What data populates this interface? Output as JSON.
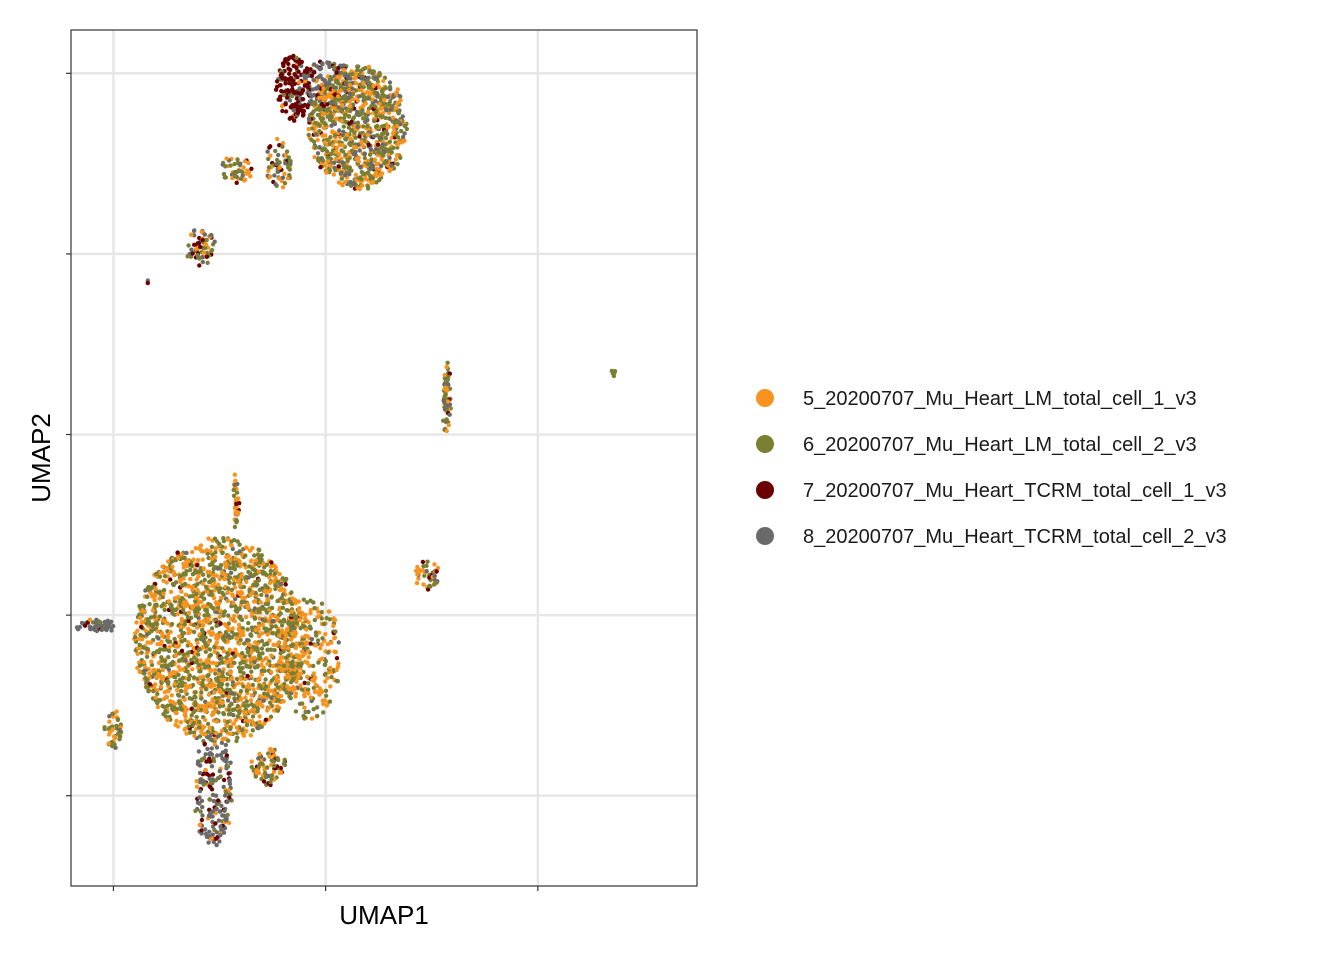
{
  "chart_data": {
    "type": "scatter",
    "xlabel": "UMAP1",
    "ylabel": "UMAP2",
    "xlim": [
      -9.5,
      20
    ],
    "ylim": [
      -12.5,
      11.2
    ],
    "grid": true,
    "tick_labels_shown": false,
    "legend_position": "right",
    "series": [
      {
        "name": "5_20200707_Mu_Heart_LM_total_cell_1_v3",
        "color": "#F7931E"
      },
      {
        "name": "6_20200707_Mu_Heart_LM_total_cell_2_v3",
        "color": "#7A7F33"
      },
      {
        "name": "7_20200707_Mu_Heart_TCRM_total_cell_1_v3",
        "color": "#6B0000"
      },
      {
        "name": "8_20200707_Mu_Heart_TCRM_total_cell_2_v3",
        "color": "#6A6A6A"
      }
    ],
    "clusters": [
      {
        "label": "top-main",
        "cx": 4.0,
        "cy": 8.5,
        "rx": 2.3,
        "ry": 1.7,
        "n": 900,
        "weights": [
          0.35,
          0.45,
          0.04,
          0.16
        ]
      },
      {
        "label": "top-left-subcluster",
        "cx": 1.0,
        "cy": 9.6,
        "rx": 0.8,
        "ry": 0.9,
        "n": 160,
        "weights": [
          0.04,
          0.04,
          0.75,
          0.17
        ]
      },
      {
        "label": "top-gray-band",
        "cx": 2.6,
        "cy": 9.7,
        "rx": 1.2,
        "ry": 0.7,
        "n": 130,
        "weights": [
          0.1,
          0.1,
          0.25,
          0.55
        ]
      },
      {
        "label": "top-left-arc",
        "cx": 0.3,
        "cy": 7.5,
        "rx": 0.6,
        "ry": 0.7,
        "n": 60,
        "weights": [
          0.25,
          0.4,
          0.15,
          0.2
        ]
      },
      {
        "label": "top-far-left-arc",
        "cx": -1.7,
        "cy": 7.3,
        "rx": 0.7,
        "ry": 0.4,
        "n": 45,
        "weights": [
          0.4,
          0.4,
          0.05,
          0.15
        ]
      },
      {
        "label": "mid-left-small",
        "cx": -3.4,
        "cy": 5.2,
        "rx": 0.7,
        "ry": 0.5,
        "n": 60,
        "weights": [
          0.25,
          0.35,
          0.2,
          0.2
        ]
      },
      {
        "label": "lone-point",
        "cx": -5.9,
        "cy": 4.2,
        "rx": 0.05,
        "ry": 0.05,
        "n": 2,
        "weights": [
          0,
          0,
          0.5,
          0.5
        ]
      },
      {
        "label": "right-strip",
        "cx": 8.2,
        "cy": 1.0,
        "rx": 0.15,
        "ry": 1.0,
        "n": 70,
        "weights": [
          0.3,
          0.5,
          0.05,
          0.15
        ]
      },
      {
        "label": "far-right-dot",
        "cx": 16.1,
        "cy": 1.75,
        "rx": 0.1,
        "ry": 0.08,
        "n": 6,
        "weights": [
          0,
          1,
          0,
          0
        ]
      },
      {
        "label": "bottom-main",
        "cx": -2.5,
        "cy": -5.7,
        "rx": 4.0,
        "ry": 2.8,
        "n": 2000,
        "weights": [
          0.45,
          0.5,
          0.02,
          0.03
        ]
      },
      {
        "label": "bottom-right-bulge",
        "cx": 1.8,
        "cy": -6.2,
        "rx": 1.4,
        "ry": 1.7,
        "n": 250,
        "weights": [
          0.5,
          0.4,
          0.04,
          0.06
        ]
      },
      {
        "label": "bottom-tail",
        "cx": -2.8,
        "cy": -9.8,
        "rx": 0.9,
        "ry": 1.6,
        "n": 200,
        "weights": [
          0.1,
          0.1,
          0.2,
          0.6
        ]
      },
      {
        "label": "bottom-tail-right",
        "cx": -0.2,
        "cy": -9.2,
        "rx": 0.8,
        "ry": 0.5,
        "n": 70,
        "weights": [
          0.35,
          0.45,
          0.15,
          0.05
        ]
      },
      {
        "label": "upper-spike",
        "cx": -1.7,
        "cy": -1.8,
        "rx": 0.12,
        "ry": 0.9,
        "n": 40,
        "weights": [
          0.5,
          0.3,
          0.05,
          0.15
        ]
      },
      {
        "label": "right-small",
        "cx": 7.3,
        "cy": -3.9,
        "rx": 0.6,
        "ry": 0.4,
        "n": 40,
        "weights": [
          0.3,
          0.4,
          0.1,
          0.2
        ]
      },
      {
        "label": "left-arc-gray",
        "cx": -8.3,
        "cy": -5.3,
        "rx": 1.0,
        "ry": 0.15,
        "n": 50,
        "weights": [
          0.05,
          0.05,
          0.1,
          0.8
        ]
      },
      {
        "label": "left-small-bottom",
        "cx": -7.5,
        "cy": -8.2,
        "rx": 0.4,
        "ry": 0.6,
        "n": 40,
        "weights": [
          0.4,
          0.55,
          0,
          0.05
        ]
      }
    ]
  }
}
